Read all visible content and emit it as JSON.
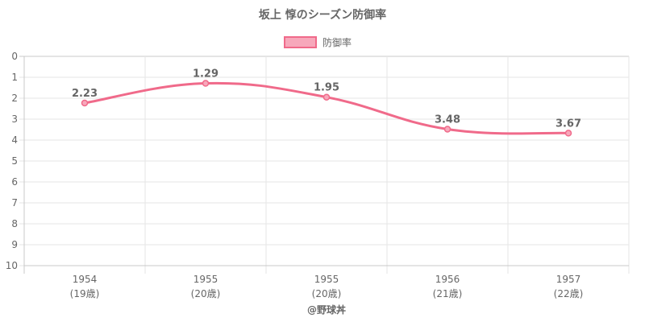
{
  "chart_data": {
    "type": "line",
    "title": "坂上 惇のシーズン防御率",
    "legend": {
      "label": "防御率",
      "position": "top"
    },
    "y_reversed": true,
    "ylim": [
      0,
      10
    ],
    "yticks": [
      "0",
      "1",
      "2",
      "3",
      "4",
      "5",
      "6",
      "7",
      "8",
      "9",
      "10"
    ],
    "categories": [
      {
        "year": "1954",
        "age": "(19歳)"
      },
      {
        "year": "1955",
        "age": "(20歳)"
      },
      {
        "year": "1955",
        "age": "(20歳)"
      },
      {
        "year": "1956",
        "age": "(21歳)"
      },
      {
        "year": "1957",
        "age": "(22歳)"
      }
    ],
    "series": [
      {
        "name": "防御率",
        "values": [
          2.23,
          1.29,
          1.95,
          3.48,
          3.67
        ],
        "labels": [
          "2.23",
          "1.29",
          "1.95",
          "3.48",
          "3.67"
        ]
      }
    ],
    "colors": {
      "line": "#f06a8a",
      "fill": "#f7a8bb",
      "grid": "#e6e6e6",
      "axis": "#c8c8c8"
    },
    "grid": true
  },
  "credit": "@野球丼"
}
